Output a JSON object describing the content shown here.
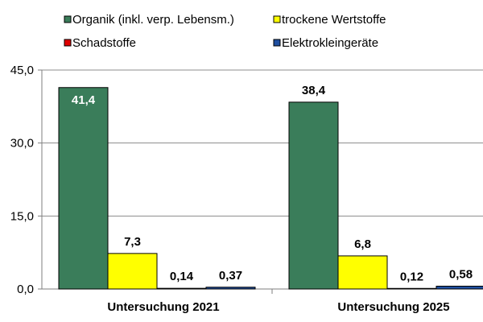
{
  "chart_data": {
    "type": "bar",
    "categories": [
      "Untersuchung 2021",
      "Untersuchung 2025"
    ],
    "series": [
      {
        "name": "Organik (inkl. verp. Lebensm.)",
        "color": "#3a7d5a",
        "values": [
          41.4,
          38.4
        ],
        "labels": [
          "41,4",
          "38,4"
        ],
        "label_colors": [
          "#ffffff",
          "#000000"
        ]
      },
      {
        "name": "trockene Wertstoffe",
        "color": "#ffff00",
        "values": [
          7.3,
          6.8
        ],
        "labels": [
          "7,3",
          "6,8"
        ],
        "label_colors": [
          "#000000",
          "#000000"
        ]
      },
      {
        "name": "Schadstoffe",
        "color": "#e00000",
        "values": [
          0.14,
          0.12
        ],
        "labels": [
          "0,14",
          "0,12"
        ],
        "label_colors": [
          "#000000",
          "#000000"
        ]
      },
      {
        "name": "Elektrokleingeräte",
        "color": "#1f4fa0",
        "values": [
          0.37,
          0.58
        ],
        "labels": [
          "0,37",
          "0,58"
        ],
        "label_colors": [
          "#000000",
          "#000000"
        ]
      }
    ],
    "yticks": [
      "0,0",
      "15,0",
      "30,0",
      "45,0"
    ],
    "ytick_values": [
      0,
      15,
      30,
      45
    ],
    "ylim": [
      0,
      45
    ],
    "grid": true,
    "legend_position": "top"
  }
}
